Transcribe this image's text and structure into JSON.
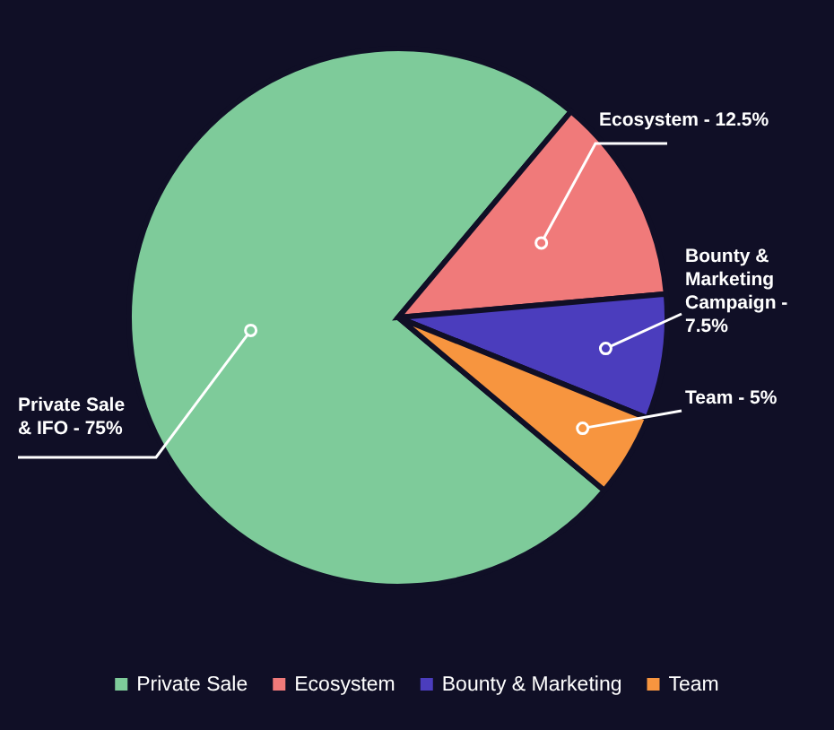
{
  "chart_data": {
    "type": "pie",
    "categories": [
      "Private Sale",
      "Ecosystem",
      "Bounty & Marketing",
      "Team"
    ],
    "values": [
      75,
      12.5,
      7.5,
      5
    ],
    "colors": [
      "#7ecb9a",
      "#f07a7a",
      "#4b3dbd",
      "#f7953f"
    ],
    "annotations": [
      "Private Sale & IFO - 75%",
      "Ecosystem - 12.5%",
      "Bounty & Marketing Campaign - 7.5%",
      "Team - 5%"
    ],
    "legend": "bottom"
  }
}
